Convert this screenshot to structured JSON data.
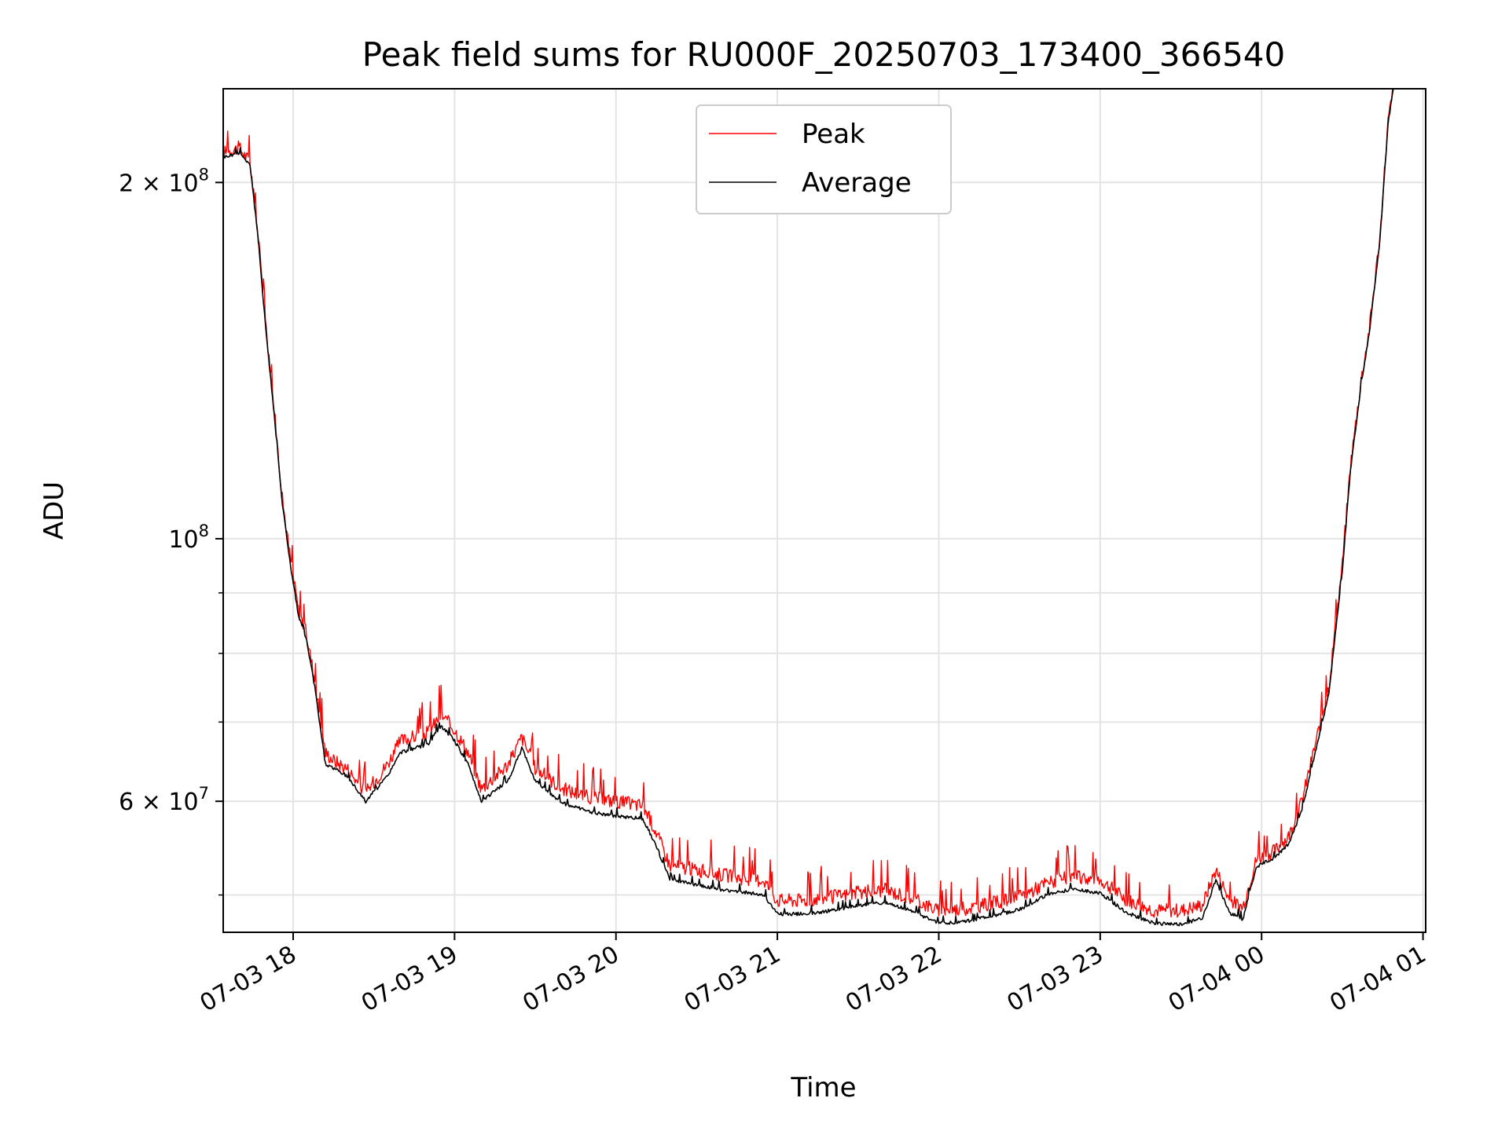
{
  "chart_data": {
    "type": "line",
    "title": "Peak field sums for RU000F_20250703_173400_366540",
    "xlabel": "Time",
    "ylabel": "ADU",
    "y_scale": "log",
    "grid": true,
    "legend_position": "top-center",
    "x_ticks": [
      "07-03 18",
      "07-03 19",
      "07-03 20",
      "07-03 21",
      "07-03 22",
      "07-03 23",
      "07-04 00",
      "07-04 01"
    ],
    "y_tick_labels": [
      {
        "value": 200000000,
        "mantissa": "2",
        "exp": "8"
      },
      {
        "value": 100000000,
        "mantissa": "",
        "exp": "8"
      },
      {
        "value": 60000000,
        "mantissa": "6",
        "exp": "7"
      }
    ],
    "x_range": [
      "2025-07-03 17:34",
      "2025-07-04 01:01"
    ],
    "y_range": [
      46500000,
      240000000
    ],
    "series": [
      {
        "name": "Peak",
        "color": "#ff0000",
        "key_points": [
          [
            "2025-07-03 17:34",
            212000000
          ],
          [
            "2025-07-03 17:40",
            214000000
          ],
          [
            "2025-07-03 17:44",
            208000000
          ],
          [
            "2025-07-03 17:47",
            180000000
          ],
          [
            "2025-07-03 17:50",
            150000000
          ],
          [
            "2025-07-03 17:53",
            128000000
          ],
          [
            "2025-07-03 17:56",
            108000000
          ],
          [
            "2025-07-03 17:59",
            96000000
          ],
          [
            "2025-07-03 18:02",
            87000000
          ],
          [
            "2025-07-03 18:05",
            83000000
          ],
          [
            "2025-07-03 18:08",
            76000000
          ],
          [
            "2025-07-03 18:12",
            66000000
          ],
          [
            "2025-07-03 18:15",
            65000000
          ],
          [
            "2025-07-03 18:20",
            64000000
          ],
          [
            "2025-07-03 18:27",
            61000000
          ],
          [
            "2025-07-03 18:35",
            64500000
          ],
          [
            "2025-07-03 18:40",
            67500000
          ],
          [
            "2025-07-03 18:50",
            68500000
          ],
          [
            "2025-07-03 18:55",
            71000000
          ],
          [
            "2025-07-03 19:00",
            69000000
          ],
          [
            "2025-07-03 19:05",
            66000000
          ],
          [
            "2025-07-03 19:10",
            61500000
          ],
          [
            "2025-07-03 19:20",
            64500000
          ],
          [
            "2025-07-03 19:25",
            68000000
          ],
          [
            "2025-07-03 19:30",
            64000000
          ],
          [
            "2025-07-03 19:40",
            61500000
          ],
          [
            "2025-07-03 19:50",
            60500000
          ],
          [
            "2025-07-03 20:00",
            60000000
          ],
          [
            "2025-07-03 20:10",
            59500000
          ],
          [
            "2025-07-03 20:15",
            56500000
          ],
          [
            "2025-07-03 20:20",
            53000000
          ],
          [
            "2025-07-03 20:30",
            52500000
          ],
          [
            "2025-07-03 20:40",
            52000000
          ],
          [
            "2025-07-03 20:50",
            51500000
          ],
          [
            "2025-07-03 20:55",
            51500000
          ],
          [
            "2025-07-03 21:00",
            49500000
          ],
          [
            "2025-07-03 21:10",
            49500000
          ],
          [
            "2025-07-03 21:20",
            49800000
          ],
          [
            "2025-07-03 21:30",
            50200000
          ],
          [
            "2025-07-03 21:40",
            50500000
          ],
          [
            "2025-07-03 21:50",
            49700000
          ],
          [
            "2025-07-03 22:00",
            48500000
          ],
          [
            "2025-07-03 22:10",
            48700000
          ],
          [
            "2025-07-03 22:20",
            49200000
          ],
          [
            "2025-07-03 22:30",
            49800000
          ],
          [
            "2025-07-03 22:40",
            51200000
          ],
          [
            "2025-07-03 22:50",
            51800000
          ],
          [
            "2025-07-03 23:00",
            51500000
          ],
          [
            "2025-07-03 23:10",
            49500000
          ],
          [
            "2025-07-03 23:20",
            48500000
          ],
          [
            "2025-07-03 23:30",
            48500000
          ],
          [
            "2025-07-03 23:38",
            49000000
          ],
          [
            "2025-07-03 23:43",
            52500000
          ],
          [
            "2025-07-03 23:48",
            49500000
          ],
          [
            "2025-07-03 23:53",
            48800000
          ],
          [
            "2025-07-03 23:58",
            53500000
          ],
          [
            "2025-07-04 00:05",
            54500000
          ],
          [
            "2025-07-04 00:10",
            56000000
          ],
          [
            "2025-07-04 00:15",
            60000000
          ],
          [
            "2025-07-04 00:20",
            67000000
          ],
          [
            "2025-07-04 00:25",
            75000000
          ],
          [
            "2025-07-04 00:30",
            95000000
          ],
          [
            "2025-07-04 00:33",
            115000000
          ],
          [
            "2025-07-04 00:37",
            136000000
          ],
          [
            "2025-07-04 00:40",
            150000000
          ],
          [
            "2025-07-04 00:44",
            180000000
          ],
          [
            "2025-07-04 00:47",
            225000000
          ],
          [
            "2025-07-04 00:49",
            240000000
          ]
        ]
      },
      {
        "name": "Average",
        "color": "#000000",
        "key_points": [
          [
            "2025-07-03 17:34",
            210000000
          ],
          [
            "2025-07-03 17:40",
            212000000
          ],
          [
            "2025-07-03 17:44",
            207000000
          ],
          [
            "2025-07-03 17:47",
            179000000
          ],
          [
            "2025-07-03 17:50",
            149000000
          ],
          [
            "2025-07-03 17:53",
            127000000
          ],
          [
            "2025-07-03 17:56",
            107000000
          ],
          [
            "2025-07-03 17:59",
            95000000
          ],
          [
            "2025-07-03 18:02",
            86000000
          ],
          [
            "2025-07-03 18:05",
            82000000
          ],
          [
            "2025-07-03 18:08",
            75000000
          ],
          [
            "2025-07-03 18:12",
            64500000
          ],
          [
            "2025-07-03 18:15",
            64000000
          ],
          [
            "2025-07-03 18:20",
            63000000
          ],
          [
            "2025-07-03 18:27",
            60000000
          ],
          [
            "2025-07-03 18:35",
            63000000
          ],
          [
            "2025-07-03 18:40",
            66000000
          ],
          [
            "2025-07-03 18:50",
            67000000
          ],
          [
            "2025-07-03 18:55",
            69500000
          ],
          [
            "2025-07-03 19:00",
            67500000
          ],
          [
            "2025-07-03 19:05",
            64500000
          ],
          [
            "2025-07-03 19:10",
            60000000
          ],
          [
            "2025-07-03 19:20",
            62500000
          ],
          [
            "2025-07-03 19:25",
            66500000
          ],
          [
            "2025-07-03 19:30",
            62500000
          ],
          [
            "2025-07-03 19:40",
            59800000
          ],
          [
            "2025-07-03 19:50",
            58800000
          ],
          [
            "2025-07-03 20:00",
            58300000
          ],
          [
            "2025-07-03 20:10",
            58000000
          ],
          [
            "2025-07-03 20:15",
            55000000
          ],
          [
            "2025-07-03 20:20",
            51500000
          ],
          [
            "2025-07-03 20:30",
            51000000
          ],
          [
            "2025-07-03 20:40",
            50500000
          ],
          [
            "2025-07-03 20:50",
            50200000
          ],
          [
            "2025-07-03 20:55",
            50000000
          ],
          [
            "2025-07-03 21:00",
            48200000
          ],
          [
            "2025-07-03 21:10",
            48200000
          ],
          [
            "2025-07-03 21:20",
            48500000
          ],
          [
            "2025-07-03 21:30",
            49000000
          ],
          [
            "2025-07-03 21:40",
            49300000
          ],
          [
            "2025-07-03 21:50",
            48500000
          ],
          [
            "2025-07-03 22:00",
            47300000
          ],
          [
            "2025-07-03 22:10",
            47500000
          ],
          [
            "2025-07-03 22:20",
            48000000
          ],
          [
            "2025-07-03 22:30",
            48600000
          ],
          [
            "2025-07-03 22:40",
            50000000
          ],
          [
            "2025-07-03 22:50",
            50600000
          ],
          [
            "2025-07-03 23:00",
            50200000
          ],
          [
            "2025-07-03 23:10",
            48300000
          ],
          [
            "2025-07-03 23:20",
            47300000
          ],
          [
            "2025-07-03 23:30",
            47200000
          ],
          [
            "2025-07-03 23:38",
            47800000
          ],
          [
            "2025-07-03 23:43",
            51500000
          ],
          [
            "2025-07-03 23:48",
            48300000
          ],
          [
            "2025-07-03 23:53",
            47700000
          ],
          [
            "2025-07-03 23:58",
            52800000
          ],
          [
            "2025-07-04 00:05",
            53800000
          ],
          [
            "2025-07-04 00:10",
            55200000
          ],
          [
            "2025-07-04 00:15",
            59000000
          ],
          [
            "2025-07-04 00:20",
            66000000
          ],
          [
            "2025-07-04 00:25",
            74000000
          ],
          [
            "2025-07-04 00:30",
            94000000
          ],
          [
            "2025-07-04 00:33",
            114000000
          ],
          [
            "2025-07-04 00:37",
            135000000
          ],
          [
            "2025-07-04 00:40",
            149000000
          ],
          [
            "2025-07-04 00:44",
            179000000
          ],
          [
            "2025-07-04 00:47",
            224000000
          ],
          [
            "2025-07-04 00:49",
            240000000
          ]
        ]
      }
    ]
  }
}
